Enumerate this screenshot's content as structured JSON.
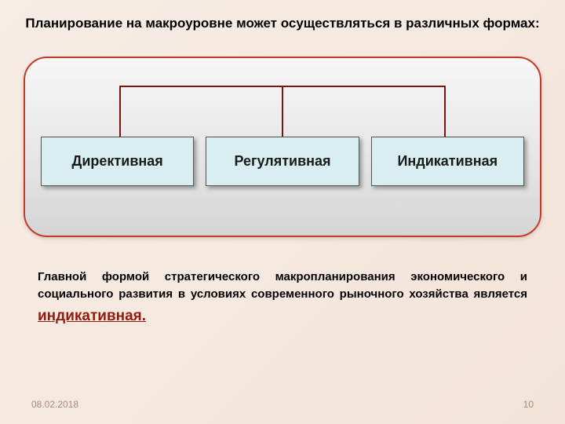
{
  "title": "Планирование на макроуровне может осуществляться в различных формах:",
  "diagram": {
    "type": "tree",
    "border_color": "#c43a2a",
    "background_gradient": [
      "#f6f6f6",
      "#e8e8e8",
      "#d5d5d5"
    ],
    "connector_color": "#7a1512",
    "box_background": "#d8eef0",
    "box_border": "#555555",
    "box_fontsize": 18,
    "nodes": [
      {
        "id": "n1",
        "label": "Директивная"
      },
      {
        "id": "n2",
        "label": "Регулятивная"
      },
      {
        "id": "n3",
        "label": "Индикативная"
      }
    ]
  },
  "paragraph": {
    "text": "Главной формой стратегического макропланирования экономического и социального развития в условиях современного рыночного хозяйства является",
    "highlight": "индикативная.",
    "highlight_color": "#931a0e",
    "fontsize": 15
  },
  "footer": {
    "date": "08.02.2018",
    "page": "10",
    "color": "#a58a7c"
  },
  "page_background": [
    "#f7ede4",
    "#f5e8de",
    "#f3e3d8"
  ]
}
